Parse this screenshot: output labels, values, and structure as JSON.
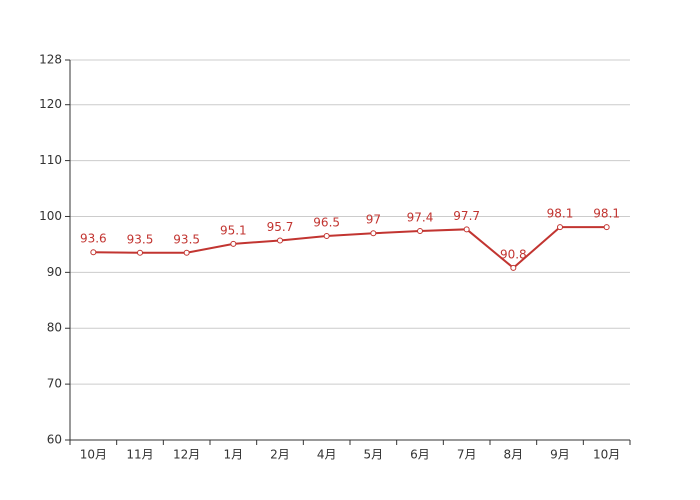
{
  "chart_data": {
    "type": "line",
    "categories": [
      "10月",
      "11月",
      "12月",
      "1月",
      "2月",
      "4月",
      "5月",
      "6月",
      "7月",
      "8月",
      "9月",
      "10月"
    ],
    "series": [
      {
        "color": "#c23531",
        "values": [
          93.6,
          93.5,
          93.5,
          95.1,
          95.7,
          96.5,
          97,
          97.4,
          97.7,
          90.8,
          98.1,
          98.1
        ]
      }
    ],
    "ylim": [
      60,
      128
    ],
    "yticks": [
      60,
      70,
      80,
      90,
      100,
      110,
      120,
      128
    ],
    "grid": true
  }
}
